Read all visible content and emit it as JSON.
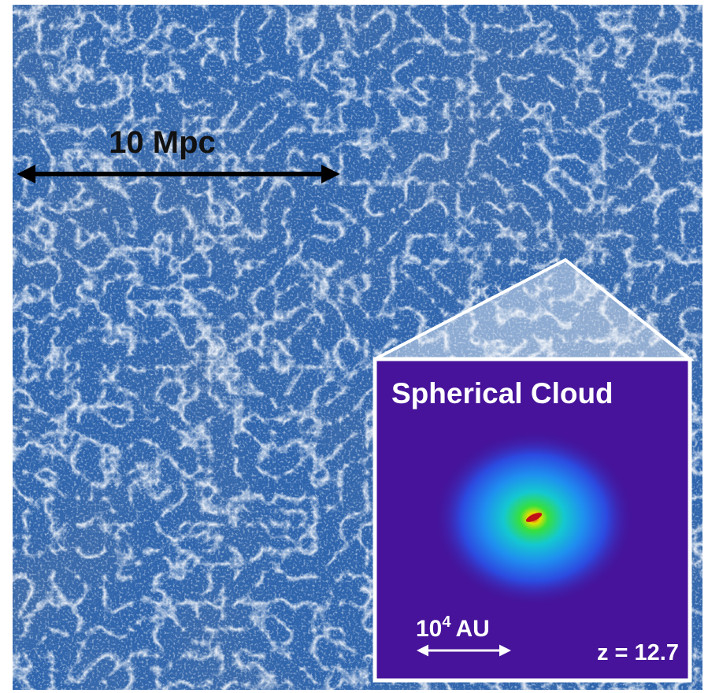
{
  "scale_bar": {
    "label": "10 Mpc"
  },
  "inset": {
    "title": "Spherical Cloud",
    "scale_label": {
      "base": "10",
      "exponent": "4",
      "unit": "AU"
    },
    "redshift": "z = 12.7"
  }
}
